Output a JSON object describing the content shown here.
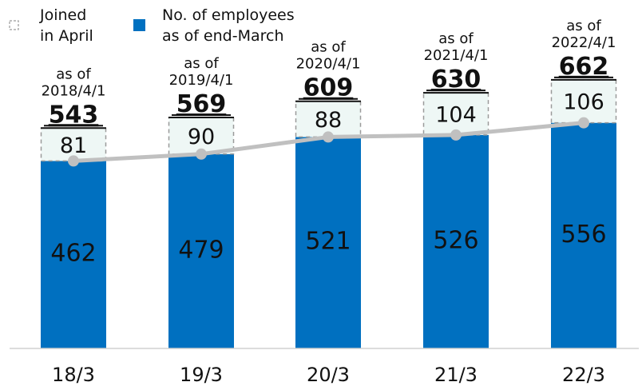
{
  "chart_data": {
    "type": "bar",
    "categories": [
      "18/3",
      "19/3",
      "20/3",
      "21/3",
      "22/3"
    ],
    "series": [
      {
        "name": "No. of employees as of end-March",
        "values": [
          462,
          479,
          521,
          526,
          556
        ],
        "color": "#0070C0"
      },
      {
        "name": "Joined in April",
        "values": [
          81,
          90,
          88,
          104,
          106
        ],
        "color": "#EEF7F5"
      }
    ],
    "totals": [
      "543",
      "569",
      "609",
      "630",
      "662"
    ],
    "total_labels": [
      [
        "as of",
        "2018/4/1"
      ],
      [
        "as of",
        "2019/4/1"
      ],
      [
        "as of",
        "2020/4/1"
      ],
      [
        "as of",
        "2021/4/1"
      ],
      [
        "as of",
        "2022/4/1"
      ]
    ],
    "legend": [
      {
        "lines": [
          "Joined",
          "in April"
        ],
        "style": "dashed",
        "color": "#EEF7F5"
      },
      {
        "lines": [
          "No. of employees",
          "as of end-March"
        ],
        "style": "solid",
        "color": "#0070C0"
      }
    ],
    "line_color": "#C0C0C0",
    "stacked": true,
    "ylim": [
      0,
      700
    ],
    "grid": false,
    "legend_position": "top-left"
  }
}
